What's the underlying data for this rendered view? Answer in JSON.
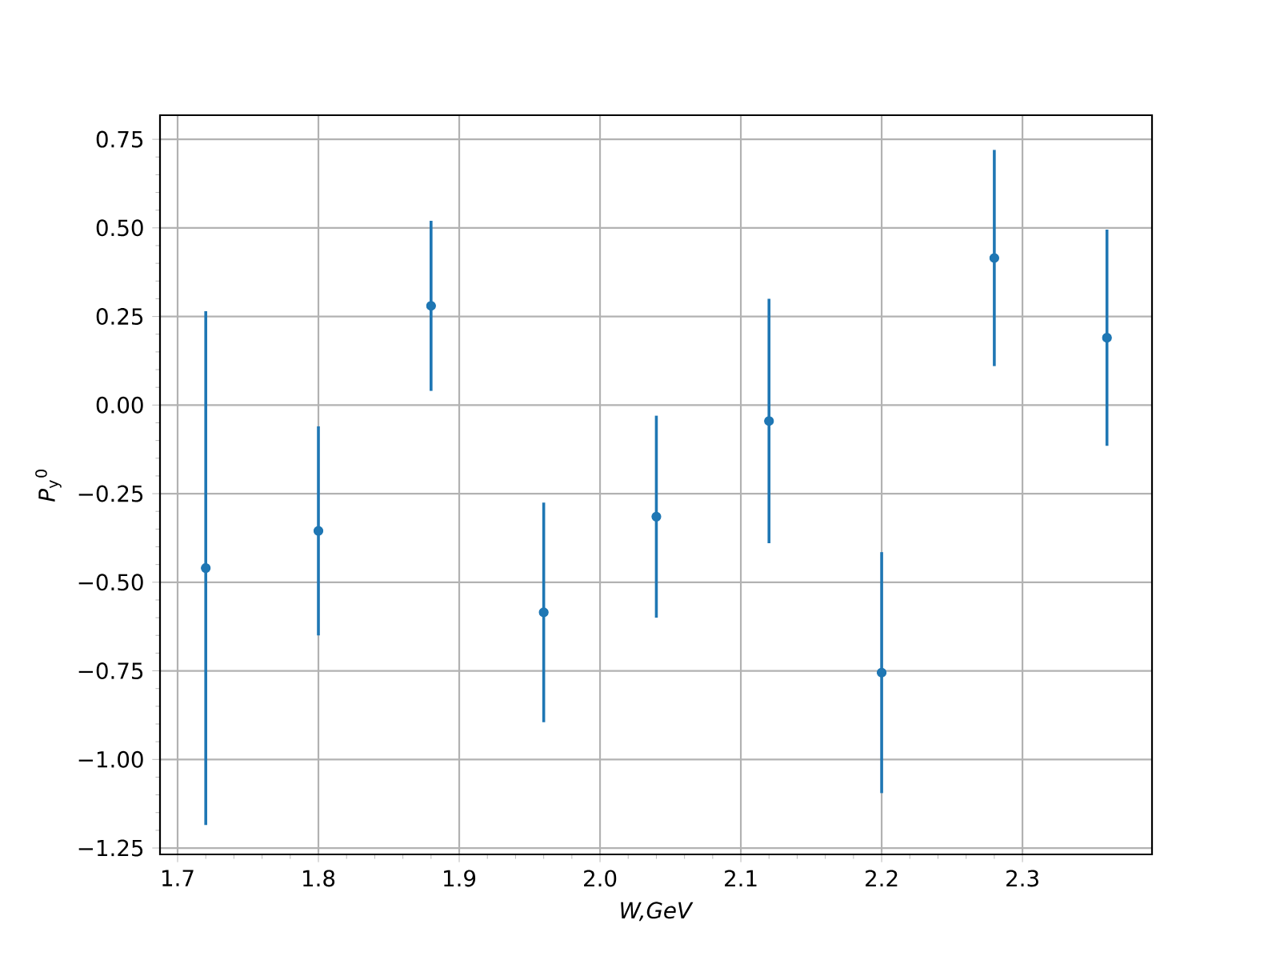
{
  "chart_data": {
    "type": "scatter",
    "xlabel": "*W,GeV*",
    "ylabel": "*P*$_{y}$$^{0}$",
    "x": [
      1.72,
      1.8,
      1.88,
      1.96,
      2.04,
      2.12,
      2.2,
      2.28,
      2.36
    ],
    "series": [
      {
        "color": "#1f77b4",
        "values": [
          -0.46,
          -0.355,
          0.28,
          -0.585,
          -0.315,
          -0.045,
          -0.755,
          0.415,
          0.19
        ],
        "errors": [
          0.725,
          0.295,
          0.24,
          0.31,
          0.285,
          0.345,
          0.34,
          0.305,
          0.305
        ]
      }
    ],
    "xlim": [
      1.6875,
      2.392
    ],
    "ylim": [
      -1.268,
      0.818
    ],
    "xticks": [
      {
        "value": 1.7,
        "label": "1.7"
      },
      {
        "value": 1.8,
        "label": "1.8"
      },
      {
        "value": 1.9,
        "label": "1.9"
      },
      {
        "value": 2.0,
        "label": "2.0"
      },
      {
        "value": 2.1,
        "label": "2.1"
      },
      {
        "value": 2.2,
        "label": "2.2"
      },
      {
        "value": 2.3,
        "label": "2.3"
      }
    ],
    "yticks": [
      {
        "value": -1.25,
        "label": "−1.25"
      },
      {
        "value": -1.0,
        "label": "−1.00"
      },
      {
        "value": -0.75,
        "label": "−0.75"
      },
      {
        "value": -0.5,
        "label": "−0.50"
      },
      {
        "value": -0.25,
        "label": "−0.25"
      },
      {
        "value": 0,
        "label": "0.00"
      },
      {
        "value": 0.25,
        "label": "0.25"
      },
      {
        "value": 0.5,
        "label": "0.50"
      },
      {
        "value": 0.75,
        "label": "0.75"
      }
    ],
    "grid": true,
    "marker": "circle"
  }
}
